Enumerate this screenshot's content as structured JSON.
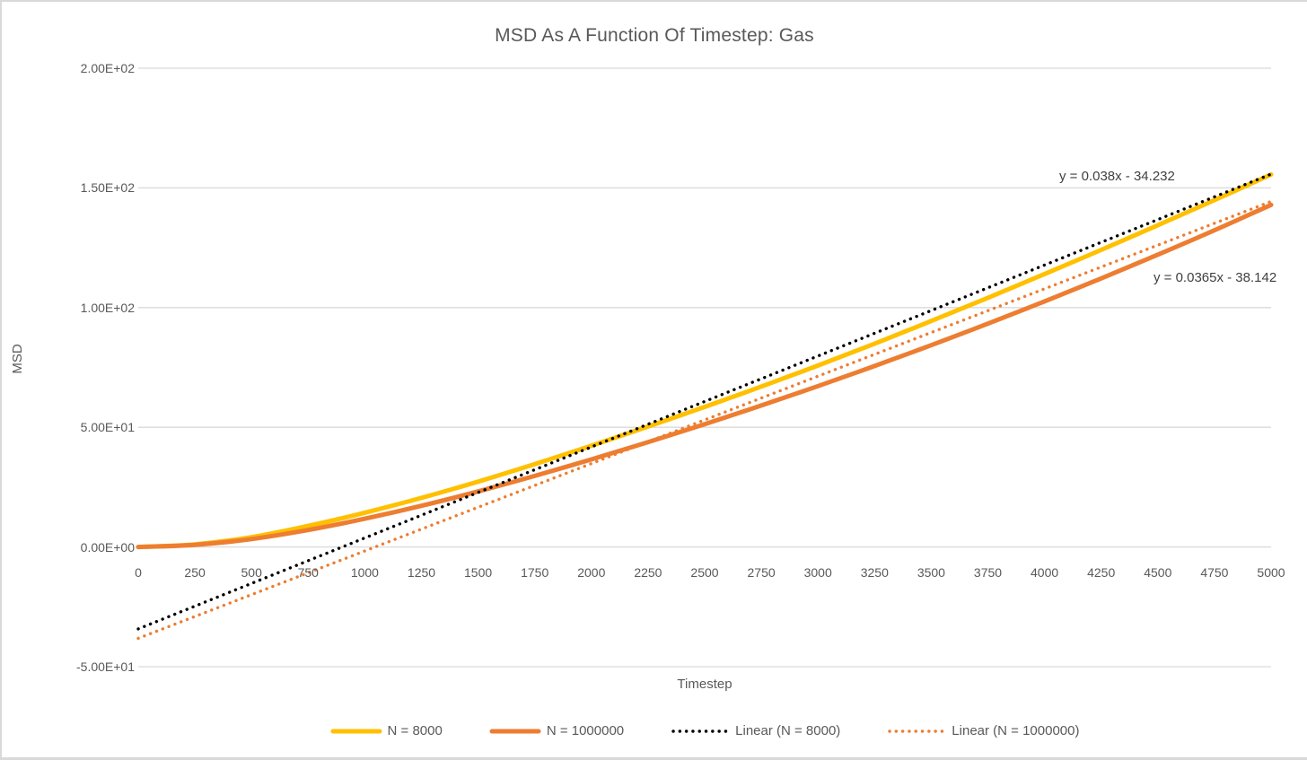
{
  "chart_data": {
    "type": "line",
    "title": "MSD As A Function Of Timestep: Gas",
    "xlabel": "Timestep",
    "ylabel": "MSD",
    "xlim": [
      0,
      5000
    ],
    "ylim": [
      -50,
      200
    ],
    "grid": "horizontal",
    "legend_position": "bottom",
    "x_ticks": [
      0,
      250,
      500,
      750,
      1000,
      1250,
      1500,
      1750,
      2000,
      2250,
      2500,
      2750,
      3000,
      3250,
      3500,
      3750,
      4000,
      4250,
      4500,
      4750,
      5000
    ],
    "y_ticks": [
      {
        "value": 200,
        "label": "2.00E+02"
      },
      {
        "value": 150,
        "label": "1.50E+02"
      },
      {
        "value": 100,
        "label": "1.00E+02"
      },
      {
        "value": 50,
        "label": "5.00E+01"
      },
      {
        "value": 0,
        "label": "0.00E+00"
      },
      {
        "value": -50,
        "label": "-5.00E+01"
      }
    ],
    "x": [
      0,
      250,
      500,
      750,
      1000,
      1250,
      1500,
      1750,
      2000,
      2250,
      2500,
      2750,
      3000,
      3250,
      3500,
      3750,
      4000,
      4250,
      4500,
      4750,
      5000
    ],
    "series": [
      {
        "name": "N = 8000",
        "color": "#FFC000",
        "style": "solid",
        "values": [
          0,
          1.1,
          4.1,
          8.8,
          14.3,
          20.5,
          27.3,
          34.6,
          42.3,
          50.3,
          58.5,
          67.0,
          75.8,
          84.9,
          94.4,
          104.1,
          114.0,
          124.1,
          134.4,
          144.9,
          155.6
        ]
      },
      {
        "name": "N = 1000000",
        "color": "#ED7D31",
        "style": "solid",
        "values": [
          0,
          0.9,
          3.3,
          7.1,
          11.8,
          17.2,
          23.2,
          29.7,
          36.6,
          43.8,
          51.3,
          59.1,
          67.2,
          75.6,
          84.3,
          93.3,
          102.6,
          112.2,
          122.1,
          132.3,
          142.9
        ]
      }
    ],
    "trendlines": [
      {
        "name": "Linear (N = 8000)",
        "color": "#000000",
        "style": "dotted",
        "slope": 0.038,
        "intercept": -34.232,
        "equation": "y = 0.038x - 34.232",
        "x_range": [
          0,
          5000
        ]
      },
      {
        "name": "Linear (N = 1000000)",
        "color": "#ED7D31",
        "style": "dotted",
        "slope": 0.0365,
        "intercept": -38.142,
        "equation": "y = 0.0365x - 38.142",
        "x_range": [
          0,
          5000
        ]
      }
    ],
    "legend": [
      {
        "label": "N = 8000",
        "color": "#FFC000",
        "style": "solid"
      },
      {
        "label": "N = 1000000",
        "color": "#ED7D31",
        "style": "solid"
      },
      {
        "label": "Linear (N = 8000)",
        "color": "#000000",
        "style": "dotted"
      },
      {
        "label": "Linear (N = 1000000)",
        "color": "#ED7D31",
        "style": "dotted"
      }
    ],
    "colors": {
      "title_text": "#595959",
      "axis_text": "#595959",
      "equation_text": "#404040",
      "gridline": "#d9d9d9",
      "background": "#ffffff"
    }
  }
}
